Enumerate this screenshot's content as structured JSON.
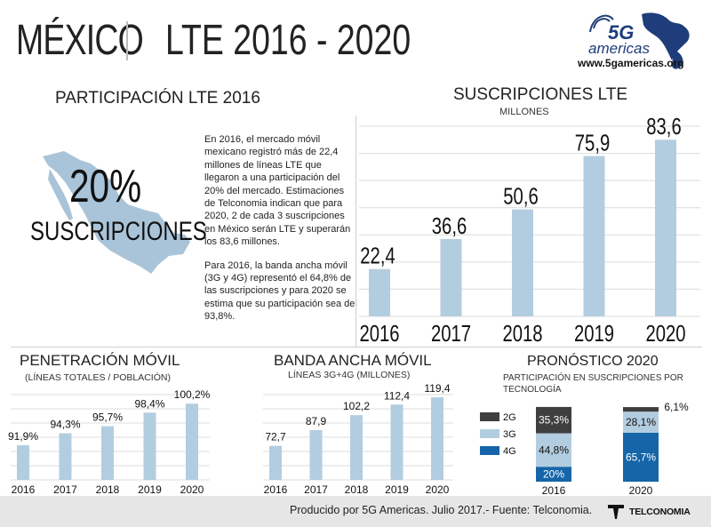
{
  "header": {
    "country": "MÉXICO",
    "subject": "LTE 2016 - 2020",
    "logo_text": "5G americas",
    "logo_url": "www.5gamericas.org"
  },
  "lte_share": {
    "title": "PARTICIPACIÓN LTE 2016",
    "big_value": "20%",
    "big_label": "SUSCRIPCIONES",
    "paragraph1": "En 2016, el mercado móvil mexicano registró más de 22,4 millones de líneas LTE que llegaron a una participación del 20% del mercado. Estimaciones de Telconomia indican que para 2020, 2 de cada 3 suscripciones en México serán LTE y superarán los 83,6 millones.",
    "paragraph2": "Para 2016, la banda ancha móvil (3G y 4G) representó el 64,8% de las suscripciones y para 2020 se estima que su participación sea del 93,8%."
  },
  "footer": {
    "credit": "Producido por 5G Americas. Julio 2017.- Fuente: Telconomia.",
    "source_logo": "TELCONOMIA"
  },
  "colors": {
    "bar": "#b3cde0",
    "map": "#a9c4d8",
    "dark": "#3f3f3f",
    "navy": "#1565a8",
    "text": "#222222"
  },
  "chart_data": [
    {
      "id": "subscriptions",
      "type": "bar",
      "title": "SUSCRIPCIONES LTE",
      "subtitle": "MILLONES",
      "categories": [
        "2016",
        "2017",
        "2018",
        "2019",
        "2020"
      ],
      "values": [
        22.4,
        36.6,
        50.6,
        75.9,
        83.6
      ],
      "labels": [
        "22,4",
        "36,6",
        "50,6",
        "75,9",
        "83,6"
      ],
      "ylim": [
        0,
        90
      ],
      "grid": true
    },
    {
      "id": "penetration",
      "type": "bar",
      "title": "PENETRACIÓN MÓVIL",
      "subtitle": "(LÍNEAS TOTALES / POBLACIÓN)",
      "categories": [
        "2016",
        "2017",
        "2018",
        "2019",
        "2020"
      ],
      "values": [
        91.9,
        94.3,
        95.7,
        98.4,
        100.2
      ],
      "labels": [
        "91,9%",
        "94,3%",
        "95,7%",
        "98,4%",
        "100,2%"
      ],
      "ylim": [
        85,
        102
      ],
      "grid": true
    },
    {
      "id": "broadband",
      "type": "bar",
      "title": "BANDA ANCHA MÓVIL",
      "subtitle": "LÍNEAS 3G+4G (MILLONES)",
      "categories": [
        "2016",
        "2017",
        "2018",
        "2019",
        "2020"
      ],
      "values": [
        72.7,
        87.9,
        102.2,
        112.4,
        119.4
      ],
      "labels": [
        "72,7",
        "87,9",
        "102,2",
        "112,4",
        "119,4"
      ],
      "ylim": [
        40,
        122
      ],
      "grid": true
    },
    {
      "id": "forecast",
      "type": "bar",
      "stacked": true,
      "title": "PRONÓSTICO 2020",
      "subtitle": "PARTICIPACIÓN EN SUSCRIPCIONES POR TECNOLOGÍA",
      "categories": [
        "2016",
        "2020"
      ],
      "series": [
        {
          "name": "4G",
          "color": "#1565a8",
          "values": [
            20.0,
            65.7
          ],
          "labels": [
            "20%",
            "65,7%"
          ]
        },
        {
          "name": "3G",
          "color": "#b3cde0",
          "values": [
            44.8,
            28.1
          ],
          "labels": [
            "44,8%",
            "28,1%"
          ]
        },
        {
          "name": "2G",
          "color": "#3f3f3f",
          "values": [
            35.3,
            6.1
          ],
          "labels": [
            "35,3%",
            "6,1%"
          ]
        }
      ],
      "legend": [
        "2G",
        "3G",
        "4G"
      ],
      "ylim": [
        0,
        100
      ]
    }
  ]
}
